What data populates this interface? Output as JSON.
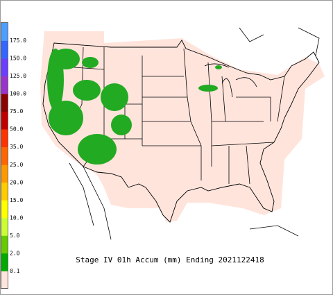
{
  "title": "Stage IV 01h Accum (mm) Ending 2021122418",
  "legend": {
    "labels": [
      "175.0",
      "150.0",
      "125.0",
      "100.0",
      "75.0",
      "50.0",
      "35.0",
      "25.0",
      "20.0",
      "15.0",
      "10.0",
      "5.0",
      "2.0",
      "0.1"
    ],
    "colors": [
      "#4d9fff",
      "#3366ff",
      "#6a3dff",
      "#9933cc",
      "#8b0000",
      "#c00000",
      "#ff3300",
      "#ff6600",
      "#ff9900",
      "#ffcc00",
      "#ffff00",
      "#ccff33",
      "#66cc00",
      "#00aa00",
      "#ffe4dc"
    ]
  }
}
